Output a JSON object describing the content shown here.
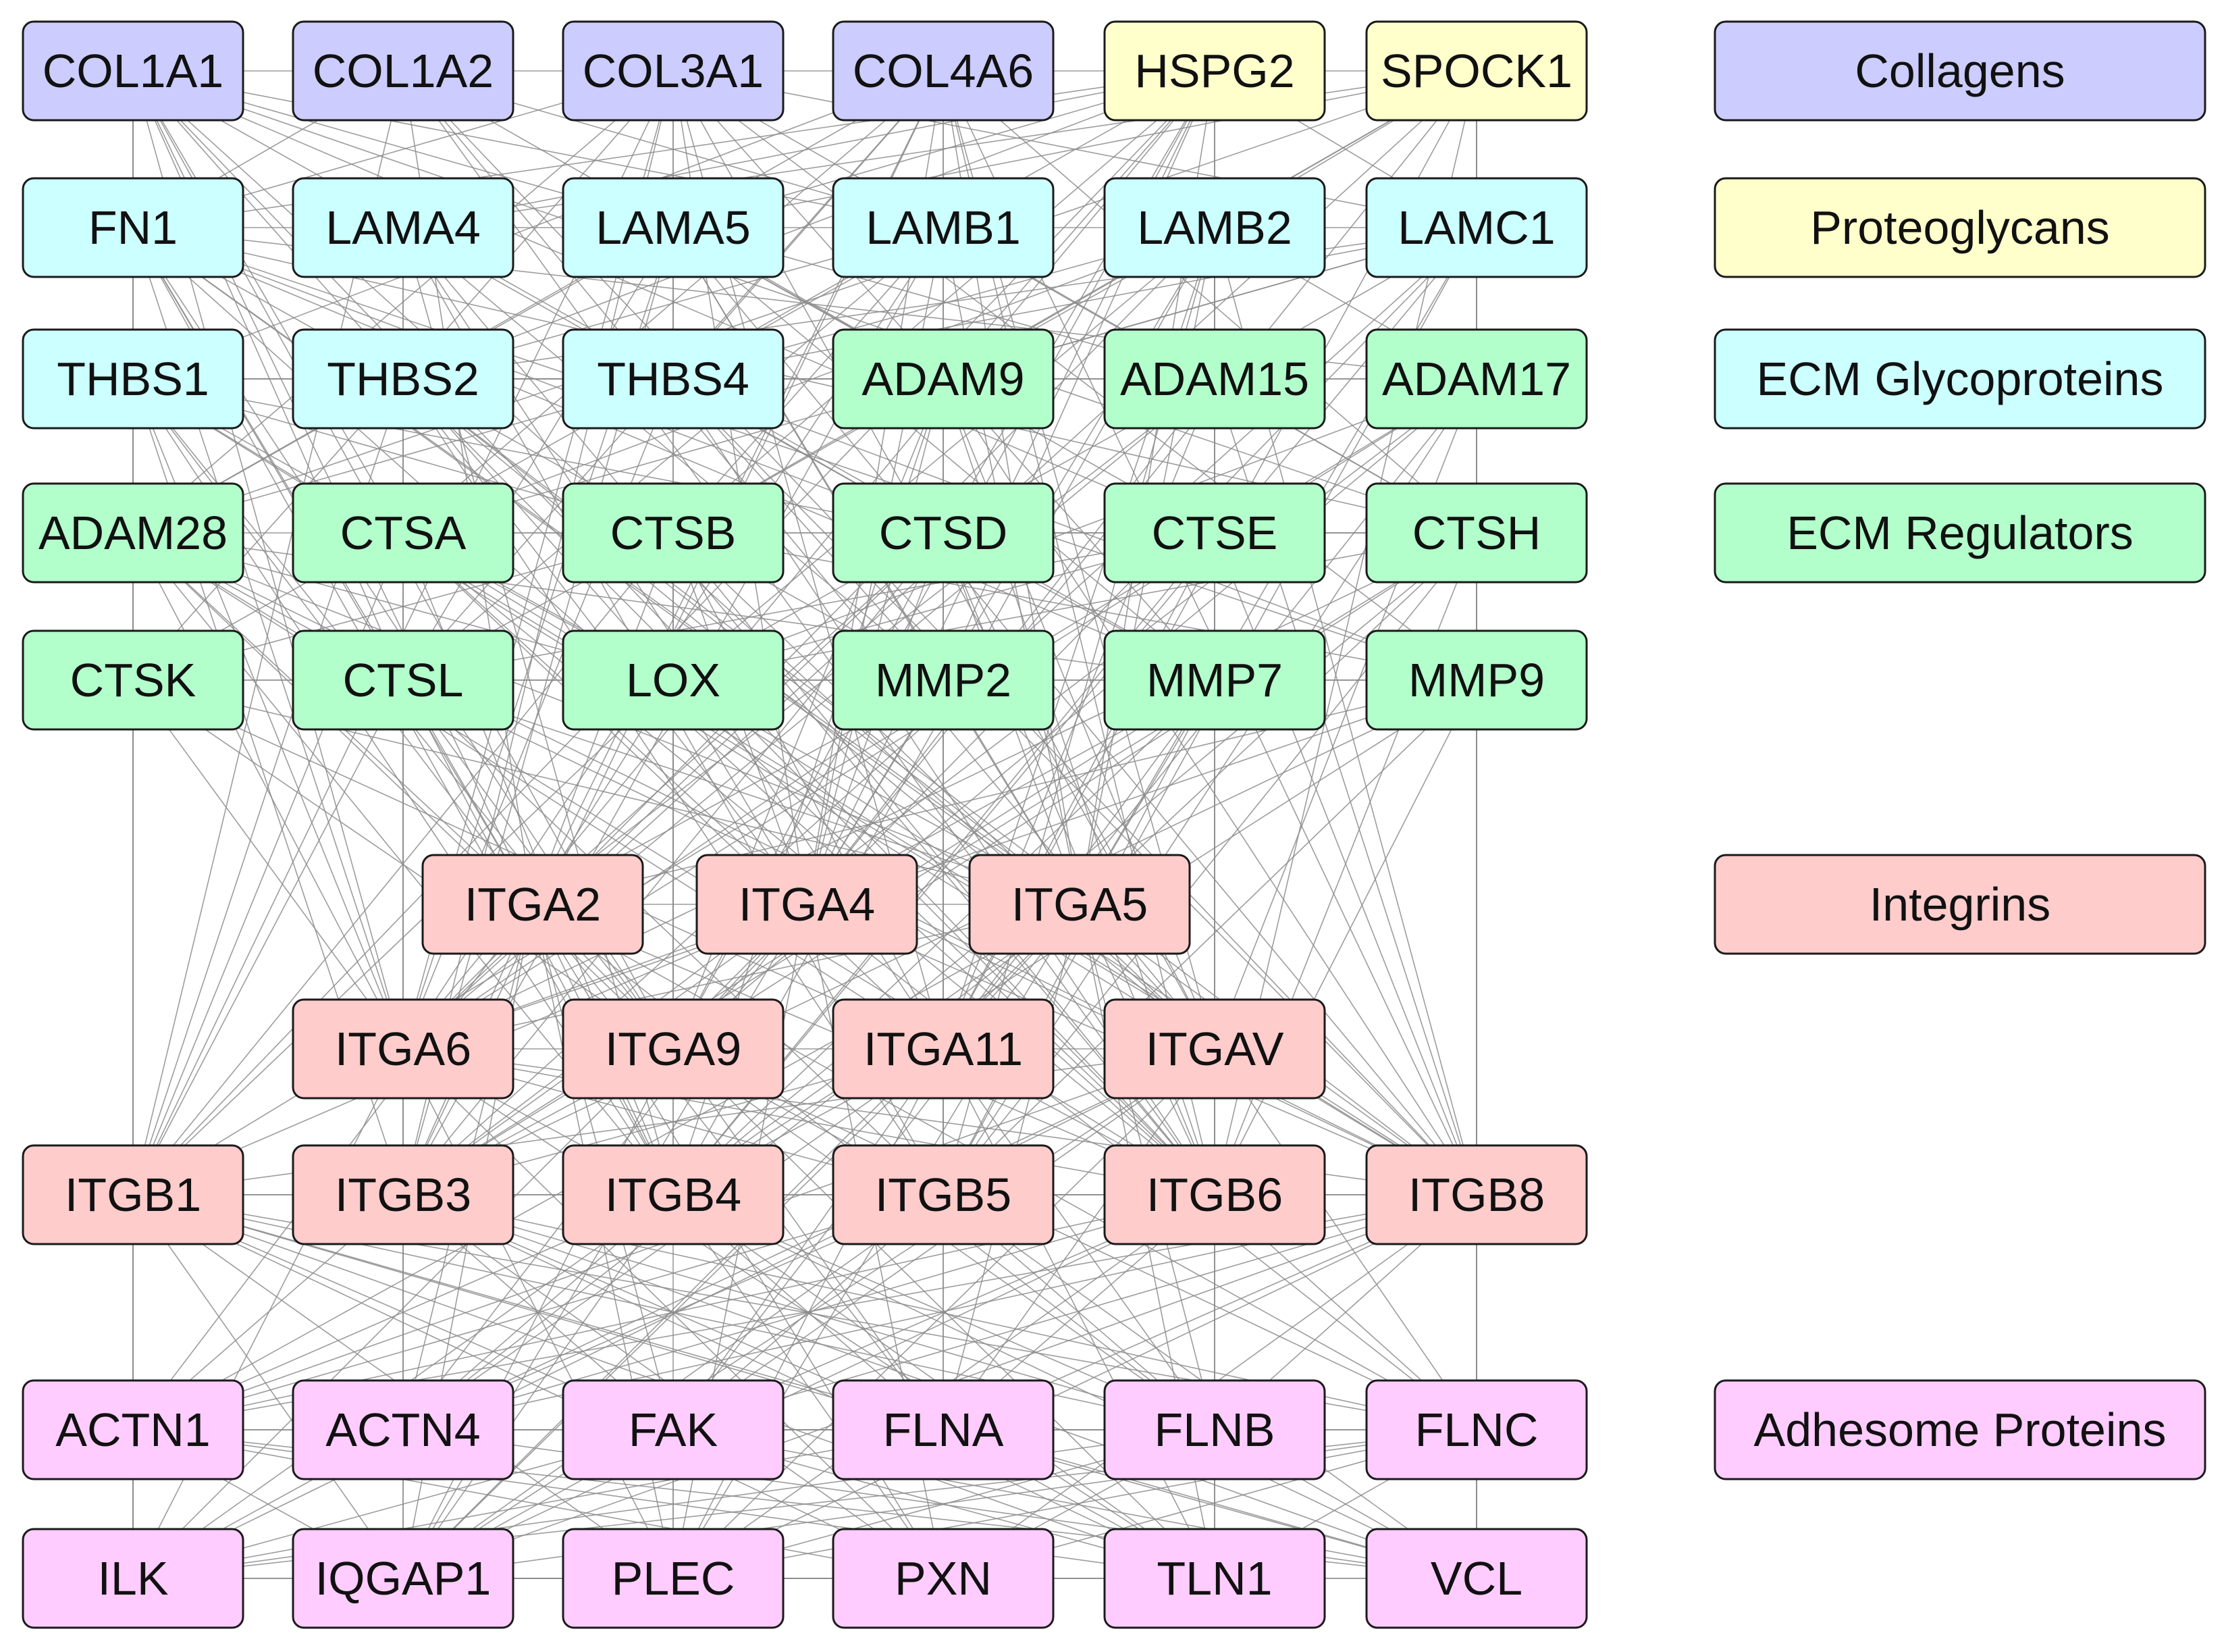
{
  "colors": {
    "collagens": "#ccccff",
    "proteoglycans": "#ffffcc",
    "glycoproteins": "#ccffff",
    "regulators": "#b3ffcc",
    "integrins": "#ffcccc",
    "adhesome": "#ffccff",
    "edge": "#8c8c8c",
    "node_border": "#1a1a1a"
  },
  "legend": [
    {
      "label": "Collagens",
      "category": "collagens"
    },
    {
      "label": "Proteoglycans",
      "category": "proteoglycans"
    },
    {
      "label": "ECM Glycoproteins",
      "category": "glycoproteins"
    },
    {
      "label": "ECM Regulators",
      "category": "regulators"
    },
    {
      "label": "Integrins",
      "category": "integrins"
    },
    {
      "label": "Adhesome Proteins",
      "category": "adhesome"
    }
  ],
  "node_rows": [
    [
      {
        "label": "COL1A1",
        "category": "collagens"
      },
      {
        "label": "COL1A2",
        "category": "collagens"
      },
      {
        "label": "COL3A1",
        "category": "collagens"
      },
      {
        "label": "COL4A6",
        "category": "collagens"
      },
      {
        "label": "HSPG2",
        "category": "proteoglycans"
      },
      {
        "label": "SPOCK1",
        "category": "proteoglycans"
      }
    ],
    [
      {
        "label": "FN1",
        "category": "glycoproteins"
      },
      {
        "label": "LAMA4",
        "category": "glycoproteins"
      },
      {
        "label": "LAMA5",
        "category": "glycoproteins"
      },
      {
        "label": "LAMB1",
        "category": "glycoproteins"
      },
      {
        "label": "LAMB2",
        "category": "glycoproteins"
      },
      {
        "label": "LAMC1",
        "category": "glycoproteins"
      }
    ],
    [
      {
        "label": "THBS1",
        "category": "glycoproteins"
      },
      {
        "label": "THBS2",
        "category": "glycoproteins"
      },
      {
        "label": "THBS4",
        "category": "glycoproteins"
      },
      {
        "label": "ADAM9",
        "category": "regulators"
      },
      {
        "label": "ADAM15",
        "category": "regulators"
      },
      {
        "label": "ADAM17",
        "category": "regulators"
      }
    ],
    [
      {
        "label": "ADAM28",
        "category": "regulators"
      },
      {
        "label": "CTSA",
        "category": "regulators"
      },
      {
        "label": "CTSB",
        "category": "regulators"
      },
      {
        "label": "CTSD",
        "category": "regulators"
      },
      {
        "label": "CTSE",
        "category": "regulators"
      },
      {
        "label": "CTSH",
        "category": "regulators"
      }
    ],
    [
      {
        "label": "CTSK",
        "category": "regulators"
      },
      {
        "label": "CTSL",
        "category": "regulators"
      },
      {
        "label": "LOX",
        "category": "regulators"
      },
      {
        "label": "MMP2",
        "category": "regulators"
      },
      {
        "label": "MMP7",
        "category": "regulators"
      },
      {
        "label": "MMP9",
        "category": "regulators"
      }
    ],
    [
      {
        "label": "ITGA2",
        "category": "integrins"
      },
      {
        "label": "ITGA4",
        "category": "integrins"
      },
      {
        "label": "ITGA5",
        "category": "integrins"
      }
    ],
    [
      {
        "label": "ITGA6",
        "category": "integrins"
      },
      {
        "label": "ITGA9",
        "category": "integrins"
      },
      {
        "label": "ITGA11",
        "category": "integrins"
      },
      {
        "label": "ITGAV",
        "category": "integrins"
      }
    ],
    [
      {
        "label": "ITGB1",
        "category": "integrins"
      },
      {
        "label": "ITGB3",
        "category": "integrins"
      },
      {
        "label": "ITGB4",
        "category": "integrins"
      },
      {
        "label": "ITGB5",
        "category": "integrins"
      },
      {
        "label": "ITGB6",
        "category": "integrins"
      },
      {
        "label": "ITGB8",
        "category": "integrins"
      }
    ],
    [
      {
        "label": "ACTN1",
        "category": "adhesome"
      },
      {
        "label": "ACTN4",
        "category": "adhesome"
      },
      {
        "label": "FAK",
        "category": "adhesome"
      },
      {
        "label": "FLNA",
        "category": "adhesome"
      },
      {
        "label": "FLNB",
        "category": "adhesome"
      },
      {
        "label": "FLNC",
        "category": "adhesome"
      }
    ],
    [
      {
        "label": "ILK",
        "category": "adhesome"
      },
      {
        "label": "IQGAP1",
        "category": "adhesome"
      },
      {
        "label": "PLEC",
        "category": "adhesome"
      },
      {
        "label": "PXN",
        "category": "adhesome"
      },
      {
        "label": "TLN1",
        "category": "adhesome"
      },
      {
        "label": "VCL",
        "category": "adhesome"
      }
    ]
  ]
}
